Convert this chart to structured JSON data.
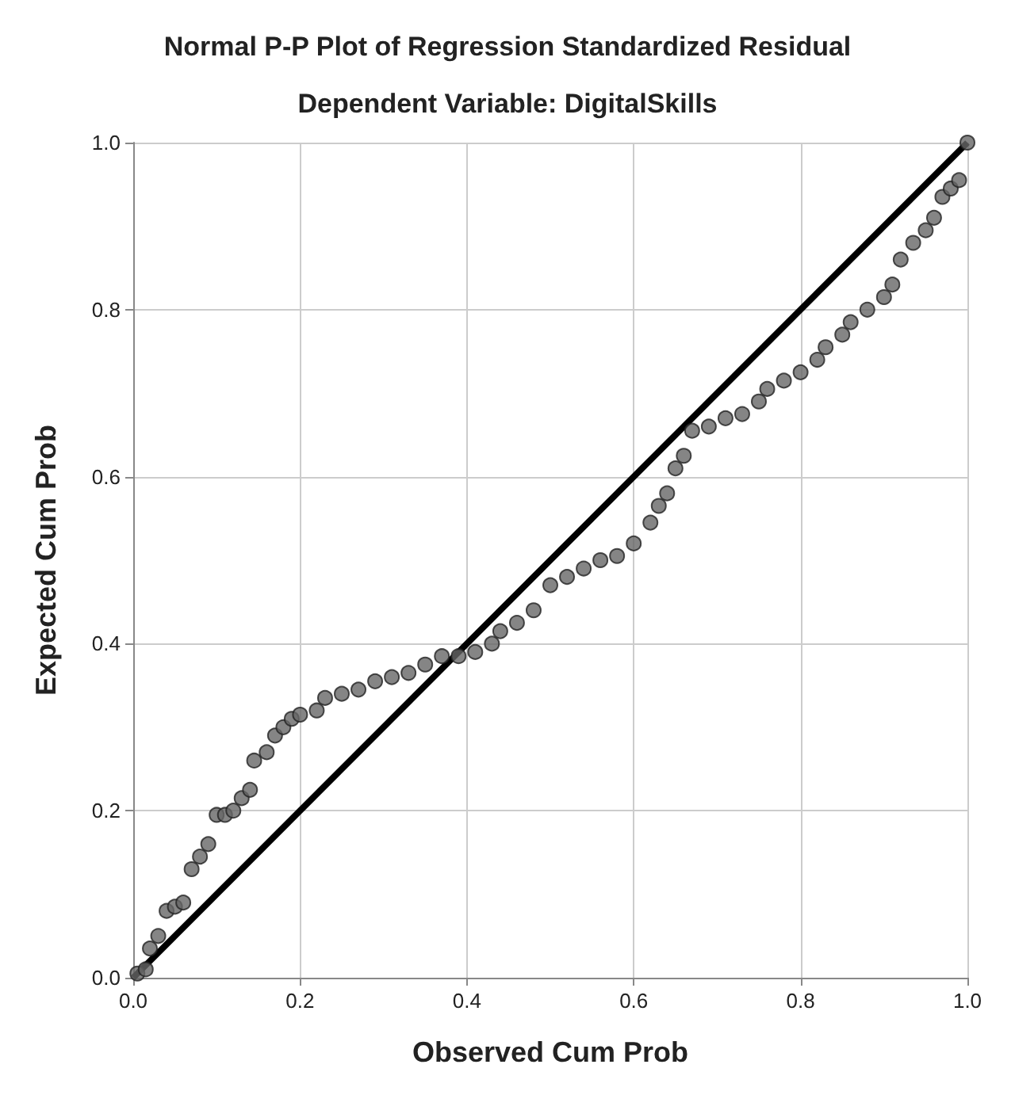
{
  "chart_data": {
    "type": "scatter",
    "title": "Normal P-P Plot of Regression Standardized Residual",
    "subtitle": "Dependent Variable: DigitalSkills",
    "xlabel": "Observed Cum Prob",
    "ylabel": "Expected Cum Prob",
    "xlim": [
      0,
      1
    ],
    "ylim": [
      0,
      1
    ],
    "xticks": [
      {
        "value": 0,
        "label": "0.0"
      },
      {
        "value": 0.2,
        "label": "0.2"
      },
      {
        "value": 0.4,
        "label": "0.4"
      },
      {
        "value": 0.6,
        "label": "0.6"
      },
      {
        "value": 0.8,
        "label": "0.8"
      },
      {
        "value": 1,
        "label": "1.0"
      }
    ],
    "yticks": [
      {
        "value": 0,
        "label": "0.0"
      },
      {
        "value": 0.2,
        "label": "0.2"
      },
      {
        "value": 0.4,
        "label": "0.4"
      },
      {
        "value": 0.6,
        "label": "0.6"
      },
      {
        "value": 0.8,
        "label": "0.8"
      },
      {
        "value": 1,
        "label": "1.0"
      }
    ],
    "grid": true,
    "series": [
      {
        "marker": "circle",
        "color": "#666666",
        "x": [
          0.005,
          0.015,
          0.02,
          0.03,
          0.04,
          0.05,
          0.06,
          0.07,
          0.08,
          0.09,
          0.1,
          0.11,
          0.12,
          0.13,
          0.14,
          0.145,
          0.16,
          0.17,
          0.18,
          0.19,
          0.2,
          0.22,
          0.23,
          0.25,
          0.27,
          0.29,
          0.31,
          0.33,
          0.35,
          0.37,
          0.39,
          0.41,
          0.43,
          0.44,
          0.46,
          0.48,
          0.5,
          0.52,
          0.54,
          0.56,
          0.58,
          0.6,
          0.62,
          0.63,
          0.64,
          0.65,
          0.66,
          0.67,
          0.69,
          0.71,
          0.73,
          0.75,
          0.76,
          0.78,
          0.8,
          0.82,
          0.83,
          0.85,
          0.86,
          0.88,
          0.9,
          0.91,
          0.92,
          0.935,
          0.95,
          0.96,
          0.97,
          0.98,
          0.99,
          1.0
        ],
        "values": [
          0.005,
          0.01,
          0.035,
          0.05,
          0.08,
          0.085,
          0.09,
          0.13,
          0.145,
          0.16,
          0.195,
          0.195,
          0.2,
          0.215,
          0.225,
          0.26,
          0.27,
          0.29,
          0.3,
          0.31,
          0.315,
          0.32,
          0.335,
          0.34,
          0.345,
          0.355,
          0.36,
          0.365,
          0.375,
          0.385,
          0.385,
          0.39,
          0.4,
          0.415,
          0.425,
          0.44,
          0.47,
          0.48,
          0.49,
          0.5,
          0.505,
          0.52,
          0.545,
          0.565,
          0.58,
          0.61,
          0.625,
          0.655,
          0.66,
          0.67,
          0.675,
          0.69,
          0.705,
          0.715,
          0.725,
          0.74,
          0.755,
          0.77,
          0.785,
          0.8,
          0.815,
          0.83,
          0.86,
          0.88,
          0.895,
          0.91,
          0.935,
          0.945,
          0.955,
          1.0
        ]
      },
      {
        "type": "line",
        "color": "#000000",
        "line_style": "solid",
        "marker": "none",
        "x": [
          0,
          1
        ],
        "values": [
          0,
          1
        ]
      }
    ]
  }
}
